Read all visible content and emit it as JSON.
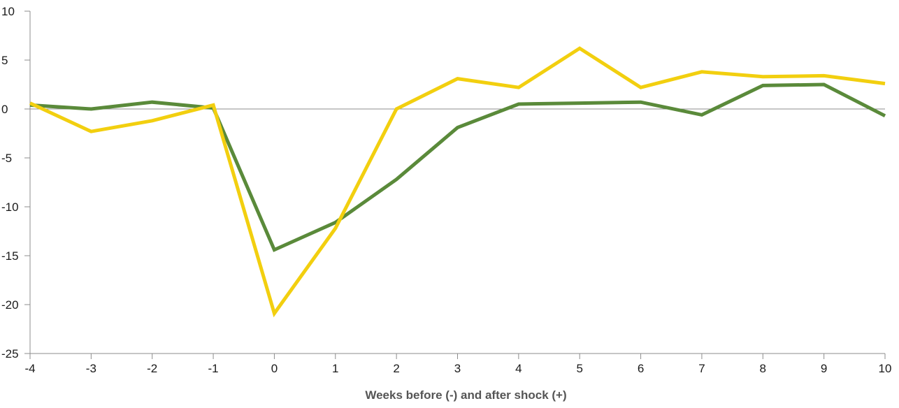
{
  "chart_data": {
    "type": "line",
    "title": "",
    "xlabel": "Weeks before (-) and after shock (+)",
    "ylabel": "",
    "x": [
      -4,
      -3,
      -2,
      -1,
      0,
      1,
      2,
      3,
      4,
      5,
      6,
      7,
      8,
      9,
      10
    ],
    "x_tick_labels": [
      "-4",
      "-3",
      "-2",
      "-1",
      "0",
      "1",
      "2",
      "3",
      "4",
      "5",
      "6",
      "7",
      "8",
      "9",
      "10"
    ],
    "y_ticks": [
      10,
      5,
      0,
      -5,
      -10,
      -15,
      -20,
      -25
    ],
    "y_tick_labels": [
      "10",
      "5",
      "0",
      "-5",
      "-10",
      "-15",
      "-20",
      "-25"
    ],
    "xlim": [
      -4,
      10
    ],
    "ylim": [
      -25,
      10
    ],
    "grid": false,
    "legend": "none",
    "series": [
      {
        "color": "#5a8a3a",
        "values": [
          0.4,
          0.0,
          0.7,
          0.1,
          -14.4,
          -11.6,
          -7.2,
          -1.9,
          0.5,
          0.6,
          0.7,
          -0.6,
          2.4,
          2.5,
          -0.7
        ]
      },
      {
        "color": "#f2cf0f",
        "values": [
          0.6,
          -2.3,
          -1.2,
          0.4,
          -20.9,
          -12.2,
          0.0,
          3.1,
          2.2,
          6.2,
          2.2,
          3.8,
          3.3,
          3.4,
          2.6
        ]
      }
    ]
  }
}
